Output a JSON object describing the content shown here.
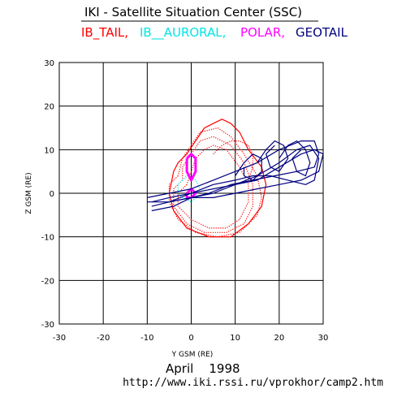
{
  "header": {
    "title": "IKI - Satellite Situation Center (SSC)",
    "spacecraft_list": [
      {
        "name": "IB_TAIL,",
        "color": "#ff0000"
      },
      {
        "name": "IB__AURORAL,",
        "color": "#00e5e5"
      },
      {
        "name": "POLAR,",
        "color": "#ff00ff"
      },
      {
        "name": "GEOTAIL",
        "color": "#000080"
      }
    ]
  },
  "footer": {
    "date": "April    1998",
    "url": "http://www.iki.rssi.ru/vprokhor/camp2.htm"
  },
  "chart_data": {
    "type": "line",
    "xlabel": "Y GSM (RE)",
    "ylabel": "Z GSM (RE)",
    "xlim": [
      -30,
      30
    ],
    "ylim": [
      -30,
      30
    ],
    "xticks": [
      -30,
      -20,
      -10,
      0,
      10,
      20,
      30
    ],
    "yticks": [
      -30,
      -20,
      -10,
      0,
      10,
      20,
      30
    ],
    "tick_labels_x": [
      "-30",
      "-20",
      "-10",
      "0",
      "10",
      "20",
      "30"
    ],
    "tick_labels_y": [
      "-30",
      "-20",
      "-10",
      "0",
      "10",
      "20",
      "30"
    ],
    "grid": true,
    "series": [
      {
        "name": "IB_TAIL",
        "color": "#ff0000",
        "style": "dotted",
        "points": [
          [
            -3,
            4
          ],
          [
            -5,
            2
          ],
          [
            -5,
            -2
          ],
          [
            -3,
            -6
          ],
          [
            1,
            -9
          ],
          [
            6,
            -10
          ],
          [
            11,
            -9
          ],
          [
            15,
            -5
          ],
          [
            16,
            -1
          ],
          [
            15,
            4
          ],
          [
            12,
            9
          ],
          [
            9,
            13
          ],
          [
            6,
            15
          ],
          [
            2,
            14
          ],
          [
            0,
            11
          ],
          [
            -2,
            8
          ],
          [
            -3,
            4
          ]
        ]
      },
      {
        "name": "IB_TAIL",
        "color": "#ff0000",
        "style": "dotted",
        "points": [
          [
            -2,
            3
          ],
          [
            -4,
            1
          ],
          [
            -4,
            -3
          ],
          [
            -1,
            -7
          ],
          [
            3,
            -9
          ],
          [
            8,
            -9
          ],
          [
            12,
            -7
          ],
          [
            14,
            -3
          ],
          [
            14,
            2
          ],
          [
            12,
            7
          ],
          [
            9,
            11
          ],
          [
            5,
            13
          ],
          [
            2,
            12
          ],
          [
            0,
            9
          ],
          [
            -2,
            6
          ],
          [
            -2,
            3
          ]
        ]
      },
      {
        "name": "IB_TAIL",
        "color": "#ff0000",
        "style": "solid",
        "points": [
          [
            -4,
            5
          ],
          [
            -5,
            0
          ],
          [
            -4,
            -4
          ],
          [
            -1,
            -8
          ],
          [
            4,
            -10
          ],
          [
            9,
            -10
          ],
          [
            13,
            -7
          ],
          [
            16,
            -3
          ],
          [
            17,
            2
          ],
          [
            16,
            6
          ],
          [
            13,
            10
          ],
          [
            11,
            14
          ],
          [
            9,
            16
          ],
          [
            7,
            17
          ],
          [
            5,
            16
          ],
          [
            3,
            15
          ],
          [
            1,
            12
          ],
          [
            -1,
            9
          ],
          [
            -3,
            7
          ],
          [
            -4,
            5
          ]
        ]
      },
      {
        "name": "IB_TAIL",
        "color": "#ff0000",
        "style": "dotted",
        "points": [
          [
            -1,
            2
          ],
          [
            -3,
            0
          ],
          [
            -3,
            -3
          ],
          [
            0,
            -6
          ],
          [
            4,
            -8
          ],
          [
            8,
            -8
          ],
          [
            11,
            -6
          ],
          [
            13,
            -2
          ],
          [
            13,
            2
          ],
          [
            11,
            6
          ],
          [
            8,
            10
          ],
          [
            5,
            11
          ],
          [
            3,
            10
          ],
          [
            1,
            8
          ],
          [
            0,
            5
          ],
          [
            -1,
            2
          ]
        ]
      },
      {
        "name": "IB_TAIL",
        "color": "#ff0000",
        "style": "dotted",
        "points": [
          [
            5,
            9
          ],
          [
            7,
            11
          ],
          [
            9,
            12
          ],
          [
            11,
            12
          ],
          [
            13,
            11
          ],
          [
            14,
            9
          ],
          [
            14,
            6
          ],
          [
            13,
            3
          ]
        ]
      },
      {
        "name": "IB__AURORAL",
        "color": "#00e5e5",
        "style": "dotted",
        "points": [
          [
            -2,
            3
          ],
          [
            -3,
            2
          ],
          [
            -3,
            0
          ],
          [
            -2,
            -1
          ],
          [
            0,
            -2
          ],
          [
            1,
            -1
          ],
          [
            2,
            1
          ],
          [
            1,
            3
          ],
          [
            0,
            4
          ],
          [
            -1,
            4
          ],
          [
            -2,
            3
          ]
        ]
      },
      {
        "name": "POLAR",
        "color": "#ff00ff",
        "style": "solid",
        "points": [
          [
            -1,
            8
          ],
          [
            -1,
            5
          ],
          [
            0,
            3
          ],
          [
            1,
            5
          ],
          [
            1,
            8
          ],
          [
            0,
            9
          ],
          [
            -1,
            8
          ]
        ]
      },
      {
        "name": "POLAR",
        "color": "#ff00ff",
        "style": "solid",
        "points": [
          [
            -1,
            0
          ],
          [
            -1,
            -1
          ],
          [
            0,
            -1
          ],
          [
            1,
            0
          ],
          [
            0,
            1
          ],
          [
            -1,
            0
          ]
        ]
      },
      {
        "name": "GEOTAIL",
        "color": "#000080",
        "style": "solid",
        "points": [
          [
            -9,
            -3
          ],
          [
            -5,
            -2
          ],
          [
            0,
            0
          ],
          [
            5,
            1
          ],
          [
            10,
            2
          ],
          [
            15,
            3
          ],
          [
            20,
            6
          ],
          [
            25,
            9
          ],
          [
            28,
            10
          ],
          [
            30,
            9
          ],
          [
            29,
            5
          ],
          [
            25,
            3
          ],
          [
            20,
            2
          ],
          [
            15,
            1
          ],
          [
            10,
            0
          ],
          [
            5,
            -1
          ],
          [
            0,
            -1
          ],
          [
            -5,
            -2
          ],
          [
            -9,
            -3
          ]
        ]
      },
      {
        "name": "GEOTAIL",
        "color": "#000080",
        "style": "solid",
        "points": [
          [
            -10,
            -1
          ],
          [
            -5,
            0
          ],
          [
            0,
            1
          ],
          [
            5,
            3
          ],
          [
            10,
            5
          ],
          [
            15,
            7
          ],
          [
            20,
            10
          ],
          [
            25,
            12
          ],
          [
            28,
            12
          ],
          [
            29,
            9
          ],
          [
            28,
            6
          ],
          [
            24,
            5
          ],
          [
            19,
            4
          ],
          [
            14,
            3
          ],
          [
            9,
            2
          ],
          [
            4,
            0
          ],
          [
            0,
            -1
          ],
          [
            -5,
            -2
          ],
          [
            -10,
            -2
          ]
        ]
      },
      {
        "name": "GEOTAIL",
        "color": "#000080",
        "style": "solid",
        "points": [
          [
            -9,
            -4
          ],
          [
            -4,
            -3
          ],
          [
            0,
            -1
          ],
          [
            5,
            0
          ],
          [
            10,
            2
          ],
          [
            15,
            4
          ],
          [
            20,
            7
          ],
          [
            24,
            10
          ],
          [
            27,
            11
          ],
          [
            29,
            8
          ],
          [
            28,
            3
          ],
          [
            26,
            2
          ],
          [
            22,
            3
          ],
          [
            18,
            4
          ],
          [
            14,
            4
          ],
          [
            10,
            3
          ],
          [
            5,
            2
          ],
          [
            0,
            0
          ],
          [
            -5,
            -1
          ],
          [
            -9,
            -2
          ]
        ]
      },
      {
        "name": "GEOTAIL",
        "color": "#000080",
        "style": "solid",
        "points": [
          [
            15,
            7
          ],
          [
            17,
            10
          ],
          [
            19,
            12
          ],
          [
            21,
            11
          ],
          [
            22,
            8
          ],
          [
            20,
            5
          ],
          [
            18,
            6
          ],
          [
            17,
            9
          ],
          [
            19,
            11
          ]
        ]
      },
      {
        "name": "GEOTAIL",
        "color": "#000080",
        "style": "solid",
        "points": [
          [
            20,
            8
          ],
          [
            22,
            11
          ],
          [
            24,
            12
          ],
          [
            26,
            10
          ],
          [
            27,
            7
          ],
          [
            26,
            4
          ],
          [
            24,
            5
          ],
          [
            23,
            8
          ],
          [
            25,
            10
          ]
        ]
      },
      {
        "name": "GEOTAIL",
        "color": "#000080",
        "style": "solid",
        "points": [
          [
            10,
            4
          ],
          [
            12,
            7
          ],
          [
            14,
            9
          ],
          [
            16,
            8
          ],
          [
            16,
            5
          ],
          [
            14,
            3
          ],
          [
            12,
            4
          ],
          [
            12,
            6
          ]
        ]
      }
    ]
  }
}
